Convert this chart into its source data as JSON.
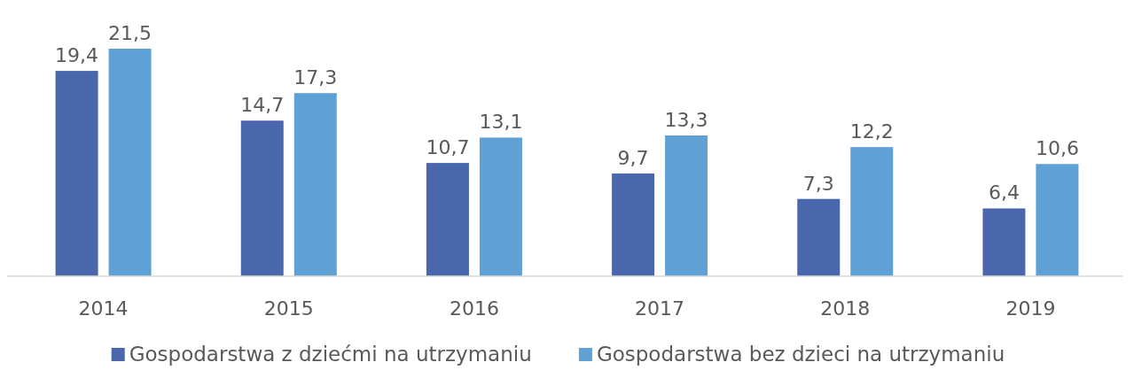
{
  "chart_data": {
    "type": "bar",
    "categories": [
      "2014",
      "2015",
      "2016",
      "2017",
      "2018",
      "2019"
    ],
    "series": [
      {
        "name": "Gospodarstwa z dziećmi na utrzymaniu",
        "color": "#4a66ac",
        "values": [
          19.4,
          14.7,
          10.7,
          9.7,
          7.3,
          6.4
        ],
        "value_labels": [
          "19,4",
          "14,7",
          "10,7",
          "9,7",
          "7,3",
          "6,4"
        ]
      },
      {
        "name": "Gospodarstwa bez dzieci na utrzymaniu",
        "color": "#5fa0d5",
        "values": [
          21.5,
          17.3,
          13.1,
          13.3,
          12.2,
          10.6
        ],
        "value_labels": [
          "21,5",
          "17,3",
          "13,1",
          "13,3",
          "12,2",
          "10,6"
        ]
      }
    ],
    "legend": "bottom"
  }
}
